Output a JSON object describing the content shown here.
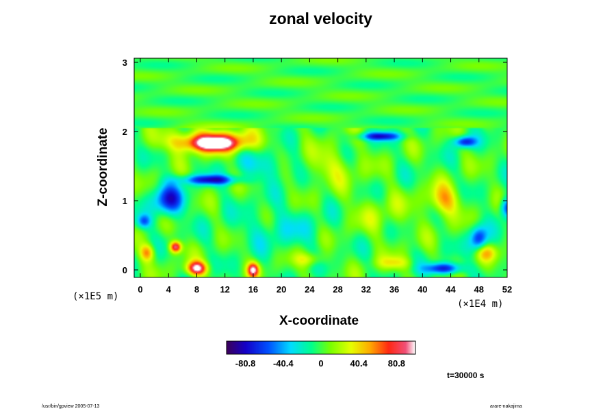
{
  "title": "zonal velocity",
  "time_label": "t=30000 s",
  "footer": {
    "left": "/usr/bin/gpview 2005-07-13",
    "right": "arare-nakajima"
  },
  "chart_data": {
    "type": "heatmap",
    "title": "zonal velocity",
    "xlabel": "X-coordinate",
    "ylabel": "Z-coordinate",
    "x_unit": "(×1E4 m)",
    "y_unit": "(×1E5 m)",
    "x_ticks": [
      "0",
      "4",
      "8",
      "12",
      "16",
      "20",
      "24",
      "28",
      "32",
      "36",
      "40",
      "44",
      "48",
      "52"
    ],
    "y_ticks": [
      "0",
      "1",
      "2",
      "3"
    ],
    "xlim": [
      0,
      52
    ],
    "ylim": [
      0,
      3
    ],
    "colorbar": {
      "min": -101,
      "max": 101,
      "tick_labels": [
        "-80.8",
        "-40.4",
        "0",
        "40.4",
        "80.8"
      ],
      "tick_values": [
        -80.8,
        -40.4,
        0,
        40.4,
        80.8
      ]
    },
    "features": [
      {
        "x": 10,
        "z": 1.85,
        "value": 95,
        "sx": 5.5,
        "sz": 0.15
      },
      {
        "x": 10.5,
        "z": 1.82,
        "value": 40,
        "sx": 3,
        "sz": 0.09
      },
      {
        "x": 43,
        "z": 1.0,
        "value": 50,
        "sx": 2.2,
        "sz": 0.22
      },
      {
        "x": 5,
        "z": 0.33,
        "value": 95,
        "sx": 0.8,
        "sz": 0.08
      },
      {
        "x": 8,
        "z": 0.02,
        "value": 100,
        "sx": 1.4,
        "sz": 0.1
      },
      {
        "x": 16,
        "z": 0.0,
        "value": 90,
        "sx": 0.8,
        "sz": 0.1
      },
      {
        "x": 1,
        "z": 0.25,
        "value": 55,
        "sx": 1,
        "sz": 0.12
      },
      {
        "x": 49,
        "z": 0.25,
        "value": 40,
        "sx": 1.5,
        "sz": 0.12
      },
      {
        "x": 24,
        "z": 0.15,
        "value": 30,
        "sx": 2,
        "sz": 0.1
      },
      {
        "x": 36,
        "z": 0.1,
        "value": 30,
        "sx": 2.5,
        "sz": 0.1
      },
      {
        "x": 4,
        "z": 1.0,
        "value": -70,
        "sx": 2.2,
        "sz": 0.22
      },
      {
        "x": 10,
        "z": 1.3,
        "value": -75,
        "sx": 4,
        "sz": 0.07
      },
      {
        "x": 34,
        "z": 1.93,
        "value": -70,
        "sx": 3,
        "sz": 0.06
      },
      {
        "x": 46,
        "z": 1.85,
        "value": -75,
        "sx": 1.5,
        "sz": 0.08
      },
      {
        "x": 43,
        "z": 0.02,
        "value": -80,
        "sx": 2.5,
        "sz": 0.08
      },
      {
        "x": 48,
        "z": 0.45,
        "value": -70,
        "sx": 1.2,
        "sz": 0.18
      },
      {
        "x": 52,
        "z": 0.9,
        "value": -70,
        "sx": 1,
        "sz": 0.15
      },
      {
        "x": 0.5,
        "z": 0.7,
        "value": -50,
        "sx": 1,
        "sz": 0.1
      },
      {
        "x": 27,
        "z": 1.5,
        "value": 25,
        "sx": 4,
        "sz": 0.25
      },
      {
        "x": 18,
        "z": 1.5,
        "value": -25,
        "sx": 4,
        "sz": 0.2
      },
      {
        "x": 34,
        "z": 0.8,
        "value": 15,
        "sx": 5,
        "sz": 0.3
      },
      {
        "x": 20,
        "z": 0.6,
        "value": -20,
        "sx": 6,
        "sz": 0.3
      }
    ]
  }
}
